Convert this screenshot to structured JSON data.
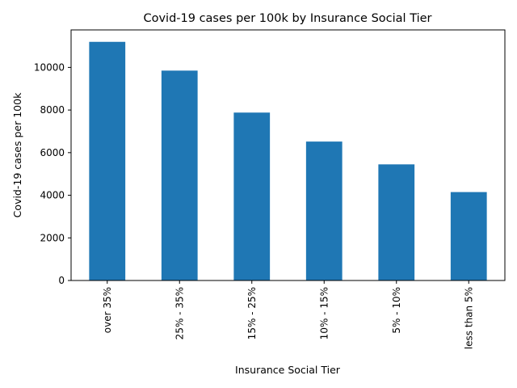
{
  "chart_data": {
    "type": "bar",
    "title": "Covid-19 cases per 100k by Insurance Social Tier",
    "xlabel": "Insurance Social Tier",
    "ylabel": "Covid-19 cases per 100k",
    "categories": [
      "over 35%",
      "25% - 35%",
      "15% - 25%",
      "10% - 15%",
      "5% - 10%",
      "less than 5%"
    ],
    "values": [
      11200,
      9850,
      7880,
      6520,
      5450,
      4150
    ],
    "ylim": [
      0,
      11760
    ],
    "yticks": [
      0,
      2000,
      4000,
      6000,
      8000,
      10000
    ],
    "grid": false,
    "bar_color": "#1f77b4"
  }
}
